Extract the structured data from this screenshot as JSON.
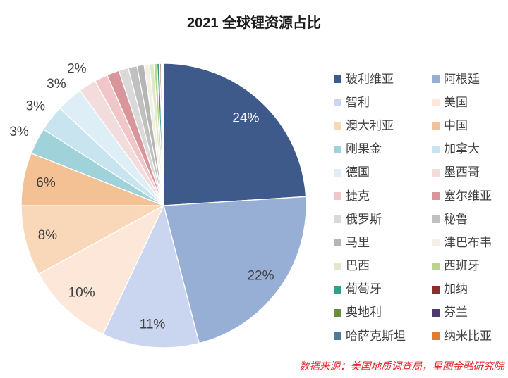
{
  "chart_data": {
    "type": "pie",
    "title": "2021 全球锂资源占比",
    "legend_position": "right",
    "slices": [
      {
        "name": "玻利维亚",
        "value": 24,
        "label": "24%",
        "color": "#3d5a8b"
      },
      {
        "name": "阿根廷",
        "value": 22,
        "label": "22%",
        "color": "#98afd5"
      },
      {
        "name": "智利",
        "value": 11,
        "label": "11%",
        "color": "#cad6ef"
      },
      {
        "name": "美国",
        "value": 10,
        "label": "10%",
        "color": "#fce7d8"
      },
      {
        "name": "澳大利亚",
        "value": 8,
        "label": "8%",
        "color": "#f9d8ba"
      },
      {
        "name": "中国",
        "value": 6,
        "label": "6%",
        "color": "#f3c194"
      },
      {
        "name": "刚果金",
        "value": 3,
        "label": "3%",
        "color": "#a0d2da"
      },
      {
        "name": "加拿大",
        "value": 3,
        "label": "3%",
        "color": "#c7e4ef"
      },
      {
        "name": "德国",
        "value": 3,
        "label": "3%",
        "color": "#ddeef7"
      },
      {
        "name": "墨西哥",
        "value": 2,
        "label": "2%",
        "color": "#f3dcdc"
      },
      {
        "name": "捷克",
        "value": 1.5,
        "color": "#f0c6c9"
      },
      {
        "name": "塞尔维亚",
        "value": 1.4,
        "color": "#d8969a"
      },
      {
        "name": "俄罗斯",
        "value": 1.1,
        "color": "#d9d9d9"
      },
      {
        "name": "秘鲁",
        "value": 1.0,
        "color": "#c0c0c0"
      },
      {
        "name": "马里",
        "value": 0.8,
        "color": "#b5b5b5"
      },
      {
        "name": "津巴布韦",
        "value": 0.6,
        "color": "#f4f0e3"
      },
      {
        "name": "巴西",
        "value": 0.5,
        "color": "#dceac8"
      },
      {
        "name": "西班牙",
        "value": 0.35,
        "color": "#bad68e"
      },
      {
        "name": "葡萄牙",
        "value": 0.3,
        "color": "#3b9b8b"
      },
      {
        "name": "加纳",
        "value": 0.15,
        "color": "#8d2e2e"
      },
      {
        "name": "奥地利",
        "value": 0.08,
        "color": "#6b8c3c"
      },
      {
        "name": "芬兰",
        "value": 0.07,
        "color": "#4c3b6b"
      },
      {
        "name": "哈萨克斯坦",
        "value": 0.07,
        "color": "#4e7c98"
      },
      {
        "name": "纳米比亚",
        "value": 0.08,
        "color": "#e07c30"
      }
    ]
  },
  "source": "数据来源：美国地质调查局，星图金融研究院"
}
